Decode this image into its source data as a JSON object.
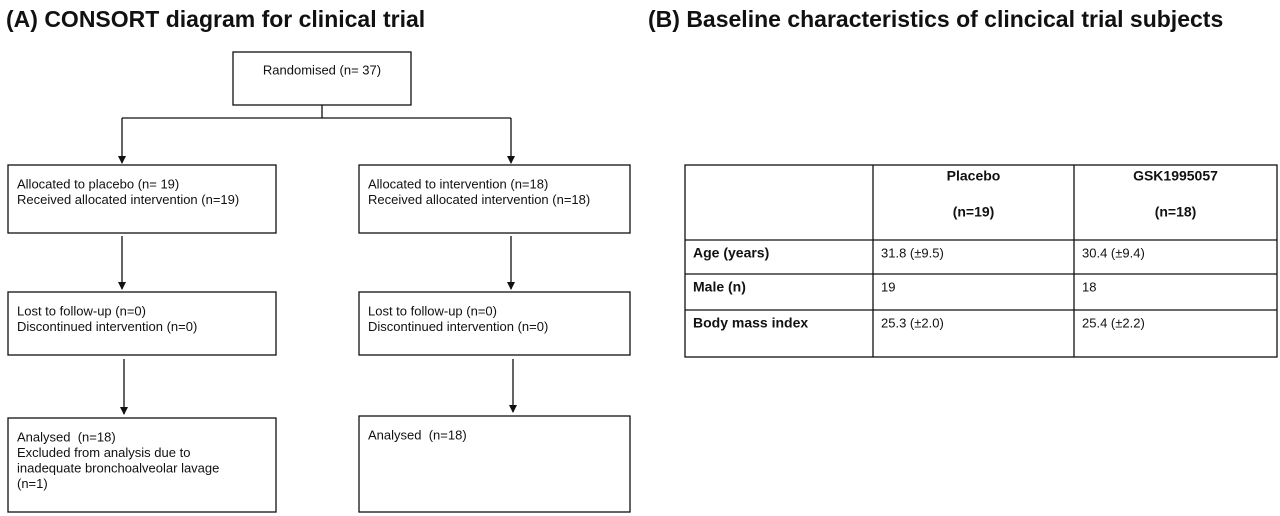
{
  "panel_a": {
    "title": "(A) CONSORT diagram for clinical trial",
    "nodes": [
      {
        "lines": [
          "Randomised (n= 37)"
        ]
      },
      {
        "lines": [
          "Allocated to placebo (n= 19)",
          "Received allocated intervention (n=19)"
        ]
      },
      {
        "lines": [
          "Allocated to intervention (n=18)",
          "Received allocated intervention (n=18)"
        ]
      },
      {
        "lines": [
          "Lost to follow-up (n=0)",
          "Discontinued intervention (n=0)"
        ]
      },
      {
        "lines": [
          "Lost to follow-up (n=0)",
          "Discontinued intervention (n=0)"
        ]
      },
      {
        "lines": [
          "Analysed  (n=18)",
          "Excluded from analysis due to",
          "inadequate bronchoalveolar lavage",
          "(n=1)"
        ]
      },
      {
        "lines": [
          "Analysed  (n=18)"
        ]
      }
    ]
  },
  "panel_b": {
    "title": "(B) Baseline characteristics of clincical trial subjects",
    "table": {
      "columns": [
        {
          "name": "Placebo",
          "n": "(n=19)"
        },
        {
          "name": "GSK1995057",
          "n": "(n=18)"
        }
      ],
      "rows": [
        [
          "Age (years)",
          "31.8 (±9.5)",
          "30.4 (±9.4)"
        ],
        [
          "Male (n)",
          "19",
          "18"
        ],
        [
          "Body mass index",
          "25.3 (±2.0)",
          "25.4 (±2.2)"
        ]
      ]
    }
  }
}
